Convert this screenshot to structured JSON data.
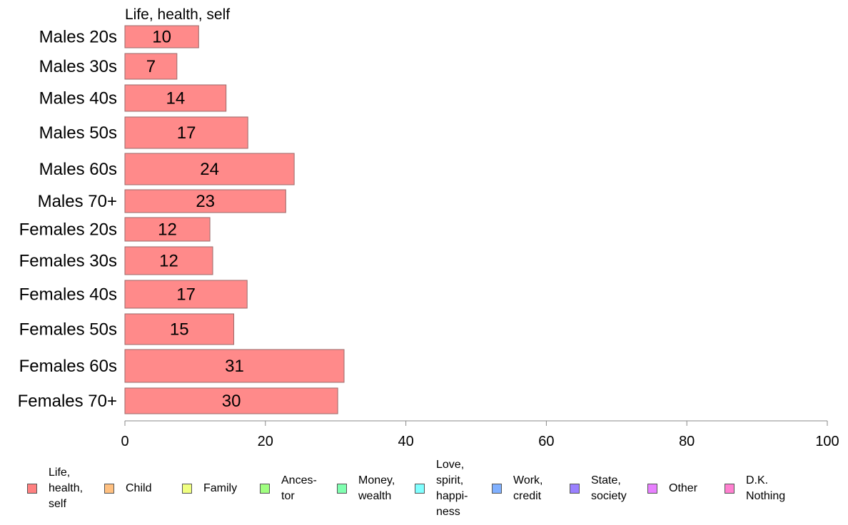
{
  "chart_data": {
    "type": "bar",
    "orientation": "horizontal",
    "title": "Life, health, self",
    "categories": [
      "Males 20s",
      "Males 30s",
      "Males 40s",
      "Males 50s",
      "Males 60s",
      "Males 70+",
      "Females 20s",
      "Females 30s",
      "Females 40s",
      "Females 50s",
      "Females 60s",
      "Females 70+"
    ],
    "values": [
      10.5,
      7.4,
      14.4,
      17.5,
      24.1,
      22.9,
      12.1,
      12.5,
      17.4,
      15.5,
      31.2,
      30.3
    ],
    "value_labels": [
      "10",
      "7",
      "14",
      "17",
      "24",
      "23",
      "12",
      "12",
      "17",
      "15",
      "31",
      "30"
    ],
    "xlim": [
      0,
      100
    ],
    "xticks": [
      "0",
      "20",
      "40",
      "60",
      "80",
      "100"
    ],
    "grid": false,
    "bar_color": "#ff8a8a",
    "bar_border_color": "#9a6a6a"
  },
  "legend": {
    "placement": "bottom",
    "items": [
      {
        "label": "Life,\nhealth,\nself",
        "color": "#ff8080"
      },
      {
        "label": "Child",
        "color": "#ffc080"
      },
      {
        "label": "Family",
        "color": "#f0ff80"
      },
      {
        "label": "Ances-\ntor",
        "color": "#a0ff80"
      },
      {
        "label": "Money,\nwealth",
        "color": "#80ffb0"
      },
      {
        "label": "Love,\nspirit,\nhappi-\nness",
        "color": "#80ffff"
      },
      {
        "label": "Work,\ncredit",
        "color": "#80b0ff"
      },
      {
        "label": "State,\nsociety",
        "color": "#9a80ff"
      },
      {
        "label": "Other",
        "color": "#e880ff"
      },
      {
        "label": "D.K.\nNothing",
        "color": "#ff80d0"
      }
    ]
  }
}
